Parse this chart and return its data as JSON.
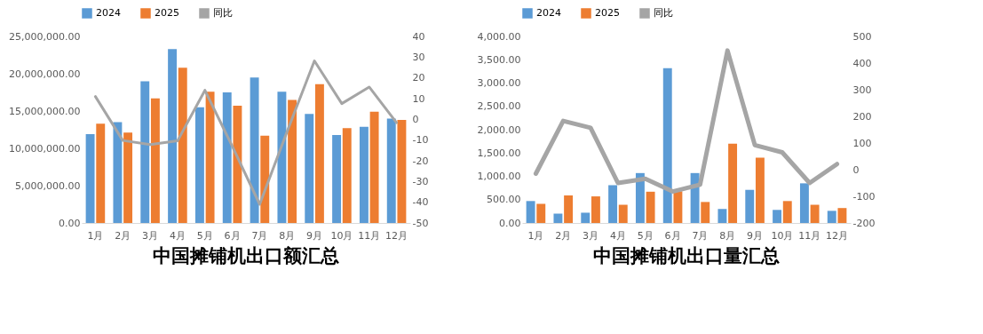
{
  "chart_data": [
    {
      "type": "bar",
      "title": "中国摊铺机出口额汇总",
      "categories": [
        "1月",
        "2月",
        "3月",
        "4月",
        "5月",
        "6月",
        "7月",
        "8月",
        "9月",
        "10月",
        "11月",
        "12月"
      ],
      "legend": "top",
      "ylim": [
        0,
        25000000
      ],
      "yticks": [
        {
          "value": 0,
          "label": "0.00"
        },
        {
          "value": 5000000,
          "label": "5,000,000.00"
        },
        {
          "value": 10000000,
          "label": "10,000,000.00"
        },
        {
          "value": 15000000,
          "label": "15,000,000.00"
        },
        {
          "value": 20000000,
          "label": "20,000,000.00"
        },
        {
          "value": 25000000,
          "label": "25,000,000.00"
        }
      ],
      "y2lim": [
        -50,
        40
      ],
      "y2ticks": [
        -50,
        -40,
        -30,
        -20,
        -10,
        0,
        10,
        20,
        30,
        40
      ],
      "series": [
        {
          "name": "2024",
          "color": "#5b9bd5",
          "values": [
            11900000,
            13500000,
            19000000,
            23300000,
            15500000,
            17500000,
            19500000,
            17600000,
            14600000,
            11800000,
            12900000,
            14000000
          ]
        },
        {
          "name": "2025",
          "color": "#ed7d31",
          "values": [
            13300000,
            12100000,
            16700000,
            20800000,
            17600000,
            15700000,
            11700000,
            16500000,
            18600000,
            12700000,
            14900000,
            13800000
          ]
        },
        {
          "name": "同比",
          "type": "line",
          "axis": "y2",
          "color": "#a5a5a5",
          "values": [
            11,
            -10.2,
            -12.2,
            -10.4,
            14,
            -13,
            -41,
            -6,
            28.2,
            7.6,
            15.6,
            -1.6
          ]
        }
      ]
    },
    {
      "type": "bar",
      "title": "中国摊铺机出口量汇总",
      "categories": [
        "1月",
        "2月",
        "3月",
        "4月",
        "5月",
        "6月",
        "7月",
        "8月",
        "9月",
        "10月",
        "11月",
        "12月"
      ],
      "legend": "top",
      "ylim": [
        0,
        4000
      ],
      "yticks": [
        {
          "value": 0,
          "label": "0.00"
        },
        {
          "value": 500,
          "label": "500.00"
        },
        {
          "value": 1000,
          "label": "1,000.00"
        },
        {
          "value": 1500,
          "label": "1,500.00"
        },
        {
          "value": 2000,
          "label": "2,000.00"
        },
        {
          "value": 2500,
          "label": "2,500.00"
        },
        {
          "value": 3000,
          "label": "3,000.00"
        },
        {
          "value": 3500,
          "label": "3,500.00"
        },
        {
          "value": 4000,
          "label": "4,000.00"
        }
      ],
      "y2lim": [
        -200,
        500
      ],
      "y2ticks": [
        -200,
        -100,
        0,
        100,
        200,
        300,
        400,
        500
      ],
      "series": [
        {
          "name": "2024",
          "color": "#5b9bd5",
          "values": [
            470,
            200,
            220,
            810,
            1070,
            3320,
            1070,
            300,
            710,
            280,
            850,
            260
          ]
        },
        {
          "name": "2025",
          "color": "#ed7d31",
          "values": [
            410,
            590,
            570,
            390,
            670,
            680,
            450,
            1700,
            1400,
            470,
            390,
            320
          ]
        },
        {
          "name": "同比",
          "type": "line",
          "axis": "y2",
          "color": "#a5a5a5",
          "values": [
            -15,
            183,
            157,
            -50,
            -34,
            -82,
            -56,
            447,
            92,
            65,
            -50,
            21
          ]
        }
      ]
    }
  ]
}
